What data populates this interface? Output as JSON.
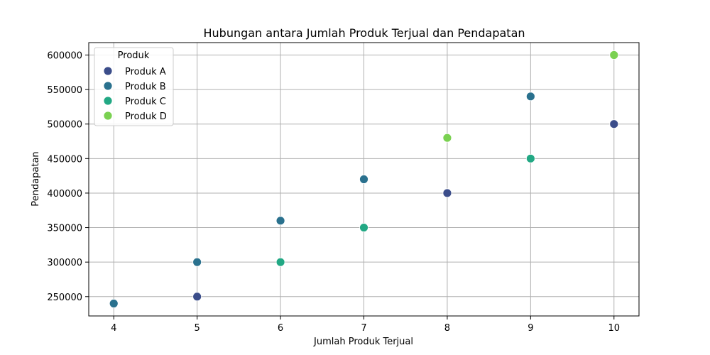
{
  "chart_data": {
    "type": "scatter",
    "title": "Hubungan antara Jumlah Produk Terjual dan Pendapatan",
    "xlabel": "Jumlah Produk Terjual",
    "ylabel": "Pendapatan",
    "xlim": [
      3.7,
      10.3
    ],
    "ylim": [
      222000,
      618000
    ],
    "xticks": [
      4,
      5,
      6,
      7,
      8,
      9,
      10
    ],
    "yticks": [
      250000,
      300000,
      350000,
      400000,
      450000,
      500000,
      550000,
      600000
    ],
    "grid": true,
    "legend": {
      "title": "Produk",
      "placement": "top-left"
    },
    "series": [
      {
        "name": "Produk A",
        "color": "#3b4d8a",
        "points": [
          [
            5,
            250000
          ],
          [
            8,
            400000
          ],
          [
            10,
            500000
          ]
        ]
      },
      {
        "name": "Produk B",
        "color": "#2a718e",
        "points": [
          [
            4,
            240000
          ],
          [
            5,
            300000
          ],
          [
            6,
            360000
          ],
          [
            7,
            420000
          ],
          [
            9,
            540000
          ]
        ]
      },
      {
        "name": "Produk C",
        "color": "#22a884",
        "points": [
          [
            6,
            300000
          ],
          [
            7,
            350000
          ],
          [
            9,
            450000
          ]
        ]
      },
      {
        "name": "Produk D",
        "color": "#7ad151",
        "points": [
          [
            8,
            480000
          ],
          [
            10,
            600000
          ]
        ]
      }
    ]
  }
}
